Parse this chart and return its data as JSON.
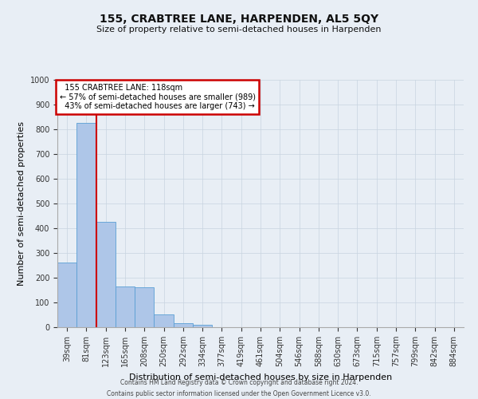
{
  "title1": "155, CRABTREE LANE, HARPENDEN, AL5 5QY",
  "title2": "Size of property relative to semi-detached houses in Harpenden",
  "xlabel": "Distribution of semi-detached houses by size in Harpenden",
  "ylabel": "Number of semi-detached properties",
  "categories": [
    "39sqm",
    "81sqm",
    "123sqm",
    "165sqm",
    "208sqm",
    "250sqm",
    "292sqm",
    "334sqm",
    "377sqm",
    "419sqm",
    "461sqm",
    "504sqm",
    "546sqm",
    "588sqm",
    "630sqm",
    "673sqm",
    "715sqm",
    "757sqm",
    "799sqm",
    "842sqm",
    "884sqm"
  ],
  "values": [
    260,
    825,
    425,
    165,
    160,
    52,
    15,
    10,
    0,
    0,
    0,
    0,
    0,
    0,
    0,
    0,
    0,
    0,
    0,
    0,
    0
  ],
  "bar_color": "#aec6e8",
  "bar_edge_color": "#5a9fd4",
  "ylim": [
    0,
    1000
  ],
  "yticks": [
    0,
    100,
    200,
    300,
    400,
    500,
    600,
    700,
    800,
    900,
    1000
  ],
  "property_label": "155 CRABTREE LANE: 118sqm",
  "pct_smaller": 57,
  "n_smaller": 989,
  "pct_larger": 43,
  "n_larger": 743,
  "annotation_box_color": "#ffffff",
  "annotation_box_edge_color": "#cc0000",
  "marker_line_color": "#cc0000",
  "grid_color": "#c8d4e0",
  "background_color": "#e8eef5",
  "footer1": "Contains HM Land Registry data © Crown copyright and database right 2024.",
  "footer2": "Contains public sector information licensed under the Open Government Licence v3.0."
}
